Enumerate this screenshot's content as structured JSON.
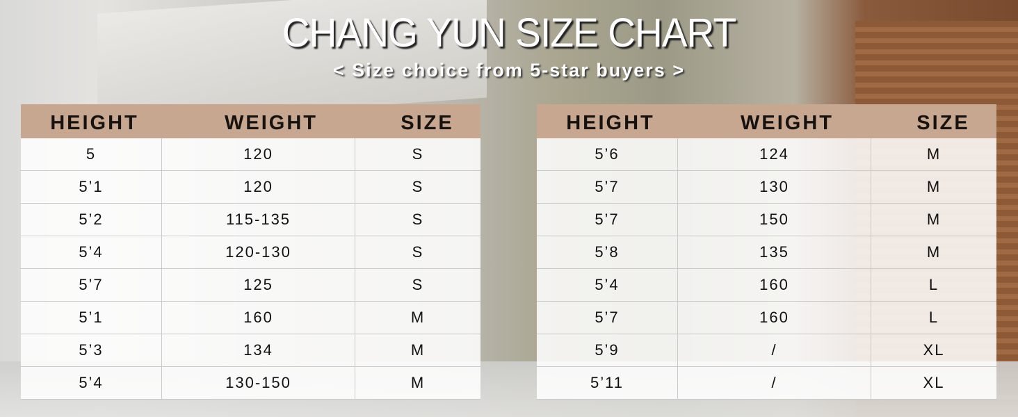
{
  "title": "CHANG YUN SIZE CHART",
  "subtitle": "< Size choice from 5-star buyers >",
  "headers": [
    "HEIGHT",
    "WEIGHT",
    "SIZE"
  ],
  "left_table": [
    [
      "5",
      "120",
      "S"
    ],
    [
      "5’1",
      "120",
      "S"
    ],
    [
      "5’2",
      "115-135",
      "S"
    ],
    [
      "5’4",
      "120-130",
      "S"
    ],
    [
      "5’7",
      "125",
      "S"
    ],
    [
      "5’1",
      "160",
      "M"
    ],
    [
      "5’3",
      "134",
      "M"
    ],
    [
      "5’4",
      "130-150",
      "M"
    ]
  ],
  "right_table": [
    [
      "5’6",
      "124",
      "M"
    ],
    [
      "5’7",
      "130",
      "M"
    ],
    [
      "5’7",
      "150",
      "M"
    ],
    [
      "5’8",
      "135",
      "M"
    ],
    [
      "5’4",
      "160",
      "L"
    ],
    [
      "5’7",
      "160",
      "L"
    ],
    [
      "5’9",
      "/",
      "XL"
    ],
    [
      "5’11",
      "/",
      "XL"
    ]
  ],
  "colors": {
    "header_bg": "#c7a78f"
  }
}
